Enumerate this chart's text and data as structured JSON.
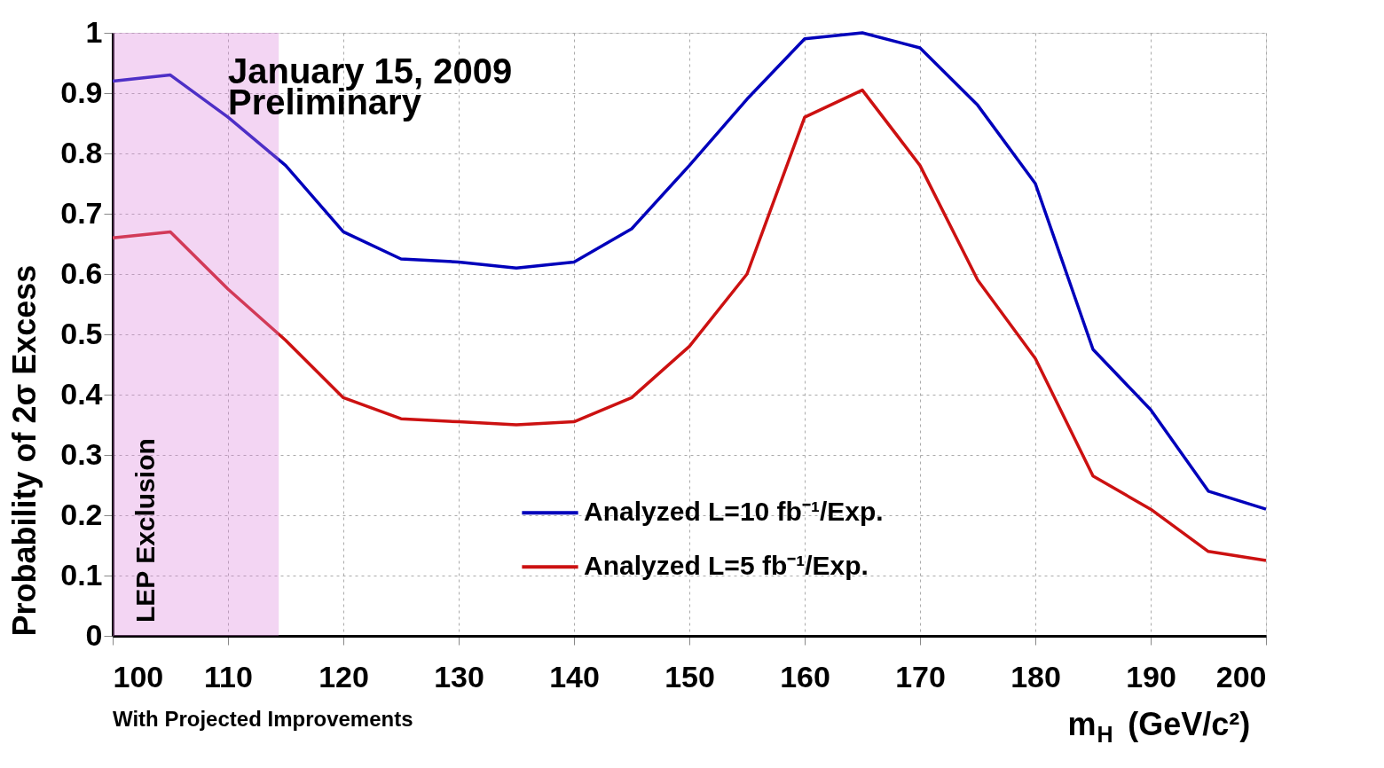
{
  "chart_data": {
    "type": "line",
    "xlabel": "m$_{H}$ (GeV/c²)",
    "ylabel": "Probability of 2σ Excess",
    "x": [
      100,
      105,
      110,
      115,
      120,
      125,
      130,
      135,
      140,
      145,
      150,
      155,
      160,
      165,
      170,
      175,
      180,
      185,
      190,
      195,
      200
    ],
    "series": [
      {
        "name": "Analyzed L=10 fb⁻¹/Exp.",
        "color": "#0000bb",
        "values": [
          0.92,
          0.93,
          0.86,
          0.78,
          0.67,
          0.625,
          0.62,
          0.61,
          0.62,
          0.675,
          0.78,
          0.89,
          0.99,
          1.0,
          0.975,
          0.88,
          0.75,
          0.475,
          0.375,
          0.24,
          0.21
        ]
      },
      {
        "name": "Analyzed L=5 fb⁻¹/Exp.",
        "color": "#cc1111",
        "values": [
          0.66,
          0.67,
          0.575,
          0.49,
          0.395,
          0.36,
          0.355,
          0.35,
          0.355,
          0.395,
          0.48,
          0.6,
          0.86,
          0.905,
          0.78,
          0.59,
          0.46,
          0.265,
          0.21,
          0.14,
          0.125
        ]
      }
    ],
    "xlim": [
      100,
      200
    ],
    "xticks": [
      100,
      110,
      120,
      130,
      140,
      150,
      160,
      170,
      180,
      190,
      200
    ],
    "ylim": [
      0,
      1
    ],
    "yticks": [
      0,
      0.1,
      0.2,
      0.3,
      0.4,
      0.5,
      0.6,
      0.7,
      0.8,
      0.9,
      1
    ],
    "bands": [
      {
        "axis": "x",
        "from": 100,
        "to": 114.4,
        "label": "LEP Exclusion",
        "color": "#dd88dd"
      }
    ],
    "annotations": [
      "January 15, 2009",
      "Preliminary",
      "With Projected Improvements"
    ],
    "grid": true,
    "legend": "bottom right",
    "line_style": "solid",
    "marker": "none"
  }
}
